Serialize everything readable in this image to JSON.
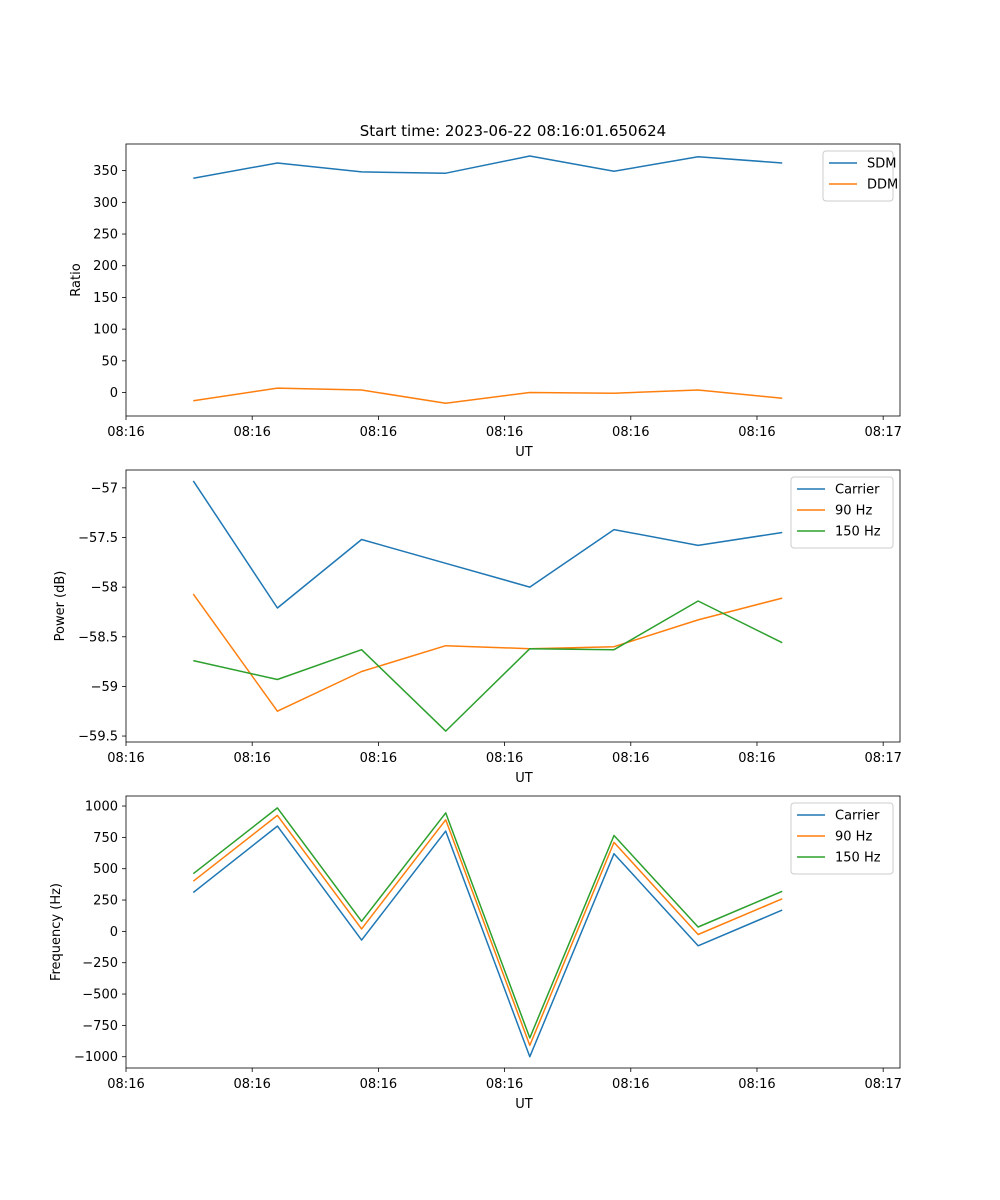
{
  "figure_title": "Start time: 2023-06-22 08:16:01.650624",
  "chart_data": [
    {
      "type": "line",
      "title": "Start time: 2023-06-22 08:16:01.650624",
      "xlabel": "UT",
      "ylabel": "Ratio",
      "x": [
        1,
        2,
        3,
        4,
        5,
        6,
        7,
        8
      ],
      "xlim": [
        0.2,
        9.4
      ],
      "x_ticks": [
        {
          "x": 0.2,
          "label": "08:16"
        },
        {
          "x": 1.7,
          "label": "08:16"
        },
        {
          "x": 3.2,
          "label": "08:16"
        },
        {
          "x": 4.7,
          "label": "08:16"
        },
        {
          "x": 6.2,
          "label": "08:16"
        },
        {
          "x": 7.7,
          "label": "08:16"
        },
        {
          "x": 9.2,
          "label": "08:17"
        }
      ],
      "ylim": [
        -37,
        392
      ],
      "y_ticks": [
        0,
        50,
        100,
        150,
        200,
        250,
        300,
        350
      ],
      "legend_position": "top-right",
      "series": [
        {
          "name": "SDM",
          "color": "#1f77b4",
          "values": [
            338,
            362,
            348,
            346,
            373,
            349,
            372,
            362
          ]
        },
        {
          "name": "DDM",
          "color": "#ff7f0e",
          "values": [
            -13,
            7,
            4,
            -17,
            0,
            -1,
            4,
            -9
          ]
        }
      ]
    },
    {
      "type": "line",
      "title": "",
      "xlabel": "UT",
      "ylabel": "Power (dB)",
      "x": [
        1,
        2,
        3,
        4,
        5,
        6,
        7,
        8
      ],
      "xlim": [
        0.2,
        9.4
      ],
      "x_ticks": [
        {
          "x": 0.2,
          "label": "08:16"
        },
        {
          "x": 1.7,
          "label": "08:16"
        },
        {
          "x": 3.2,
          "label": "08:16"
        },
        {
          "x": 4.7,
          "label": "08:16"
        },
        {
          "x": 6.2,
          "label": "08:16"
        },
        {
          "x": 7.7,
          "label": "08:16"
        },
        {
          "x": 9.2,
          "label": "08:17"
        }
      ],
      "ylim": [
        -59.56,
        -56.82
      ],
      "y_ticks": [
        -59.5,
        -59.0,
        -58.5,
        -58.0,
        -57.5,
        -57.0
      ],
      "legend_position": "top-right",
      "series": [
        {
          "name": "Carrier",
          "color": "#1f77b4",
          "values": [
            -56.93,
            -58.21,
            -57.52,
            -57.76,
            -58.0,
            -57.42,
            -57.58,
            -57.45
          ]
        },
        {
          "name": "90 Hz",
          "color": "#ff7f0e",
          "values": [
            -58.07,
            -59.25,
            -58.85,
            -58.59,
            -58.62,
            -58.6,
            -58.33,
            -58.11
          ]
        },
        {
          "name": "150 Hz",
          "color": "#2ca02c",
          "values": [
            -58.74,
            -58.93,
            -58.63,
            -59.45,
            -58.62,
            -58.63,
            -58.14,
            -58.56
          ]
        }
      ]
    },
    {
      "type": "line",
      "title": "",
      "xlabel": "UT",
      "ylabel": "Frequency (Hz)",
      "x": [
        1,
        2,
        3,
        4,
        5,
        6,
        7,
        8
      ],
      "xlim": [
        0.2,
        9.4
      ],
      "x_ticks": [
        {
          "x": 0.2,
          "label": "08:16"
        },
        {
          "x": 1.7,
          "label": "08:16"
        },
        {
          "x": 3.2,
          "label": "08:16"
        },
        {
          "x": 4.7,
          "label": "08:16"
        },
        {
          "x": 6.2,
          "label": "08:16"
        },
        {
          "x": 7.7,
          "label": "08:16"
        },
        {
          "x": 9.2,
          "label": "08:17"
        }
      ],
      "ylim": [
        -1090,
        1080
      ],
      "y_ticks": [
        -1000,
        -750,
        -500,
        -250,
        0,
        250,
        500,
        750,
        1000
      ],
      "legend_position": "top-right",
      "series": [
        {
          "name": "Carrier",
          "color": "#1f77b4",
          "values": [
            310,
            840,
            -70,
            800,
            -1000,
            620,
            -115,
            170
          ]
        },
        {
          "name": "90 Hz",
          "color": "#ff7f0e",
          "values": [
            400,
            925,
            20,
            890,
            -910,
            710,
            -25,
            260
          ]
        },
        {
          "name": "150 Hz",
          "color": "#2ca02c",
          "values": [
            460,
            985,
            80,
            945,
            -850,
            765,
            35,
            320
          ]
        }
      ]
    }
  ]
}
